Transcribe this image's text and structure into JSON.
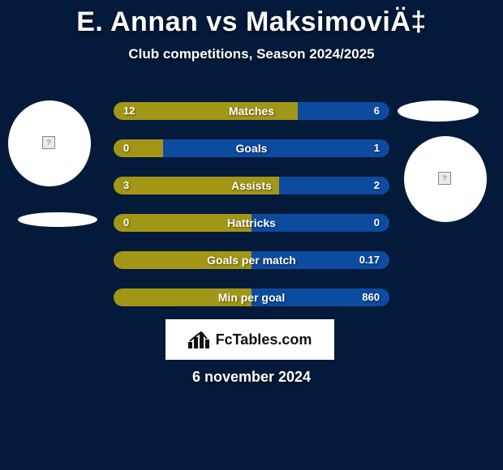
{
  "background_color": "#031a3a",
  "text_color": "#ffffff",
  "left_color": "#a29617",
  "right_color": "#0d4b9e",
  "title": "E. Annan vs MaksimoviÄ‡",
  "subtitle": "Club competitions, Season 2024/2025",
  "date": "6 november 2024",
  "brand": "FcTables.com",
  "bars": [
    {
      "name": "Matches",
      "left": "12",
      "right": "6",
      "left_pct": 66.7,
      "right_pct": 33.3
    },
    {
      "name": "Goals",
      "left": "0",
      "right": "1",
      "left_pct": 18,
      "right_pct": 82
    },
    {
      "name": "Assists",
      "left": "3",
      "right": "2",
      "left_pct": 60,
      "right_pct": 40
    },
    {
      "name": "Hattricks",
      "left": "0",
      "right": "0",
      "left_pct": 50,
      "right_pct": 50
    },
    {
      "name": "Goals per match",
      "left": "",
      "right": "0.17",
      "left_pct": 50,
      "right_pct": 50
    },
    {
      "name": "Min per goal",
      "left": "",
      "right": "860",
      "left_pct": 50,
      "right_pct": 50
    }
  ]
}
